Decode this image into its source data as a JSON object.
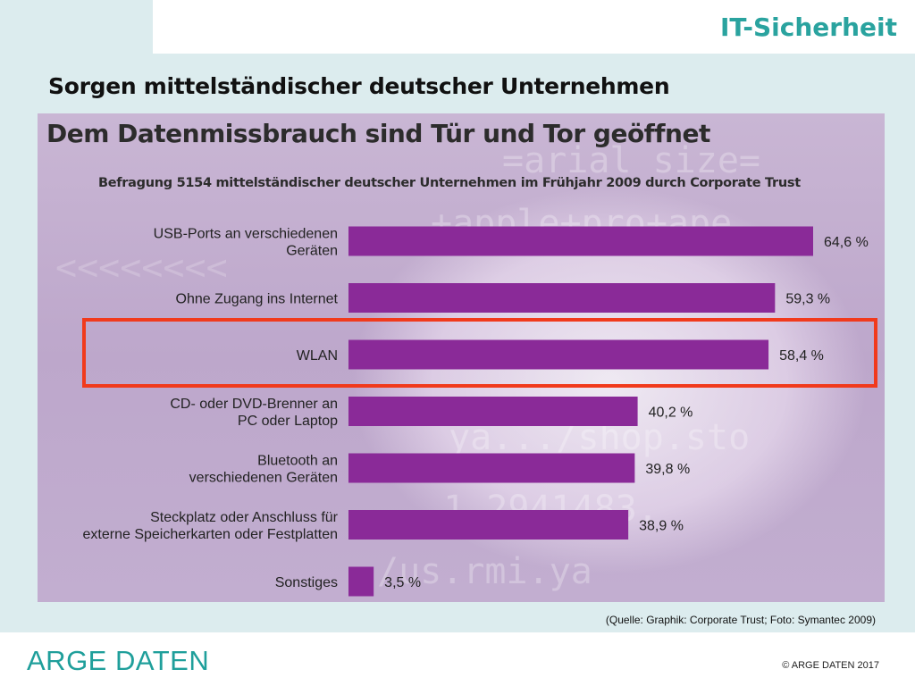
{
  "header": {
    "corner_title": "IT-Sicherheit",
    "slide_title": "Sorgen mittelständischer deutscher Unternehmen"
  },
  "chart_data": {
    "type": "bar",
    "orientation": "horizontal",
    "title": "Dem Datenmissbrauch sind Tür und Tor geöffnet",
    "subtitle": "Befragung 5154 mittelständischer deutscher Unternehmen im Frühjahr 2009 durch Corporate Trust",
    "categories": [
      "USB-Ports an verschiedenen Geräten",
      "Ohne Zugang ins Internet",
      "WLAN",
      "CD- oder DVD-Brenner an PC oder Laptop",
      "Bluetooth an verschiedenen Geräten",
      "Steckplatz oder Anschluss für externe Speicherkarten oder Festplatten",
      "Sonstiges"
    ],
    "category_lines": [
      [
        "USB-Ports an verschiedenen",
        "Geräten"
      ],
      [
        "Ohne Zugang ins Internet"
      ],
      [
        "WLAN"
      ],
      [
        "CD- oder DVD-Brenner an",
        "PC oder Laptop"
      ],
      [
        "Bluetooth an",
        "verschiedenen Geräten"
      ],
      [
        "Steckplatz oder Anschluss für",
        "externe Speicherkarten oder Festplatten"
      ],
      [
        "Sonstiges"
      ]
    ],
    "values": [
      64.6,
      59.3,
      58.4,
      40.2,
      39.8,
      38.9,
      3.5
    ],
    "value_labels": [
      "64,6 %",
      "59,3 %",
      "58,4 %",
      "40,2 %",
      "39,8 %",
      "38,9 %",
      "3,5 %"
    ],
    "unit": "%",
    "highlighted_category": "WLAN",
    "bar_color": "#8a2a98",
    "highlight_color": "#f13a1c"
  },
  "source": "(Quelle: Graphik: Corporate Trust; Foto: Symantec 2009)",
  "footer": {
    "logo": "ARGE DATEN",
    "copyright": "© ARGE DATEN 2017"
  }
}
